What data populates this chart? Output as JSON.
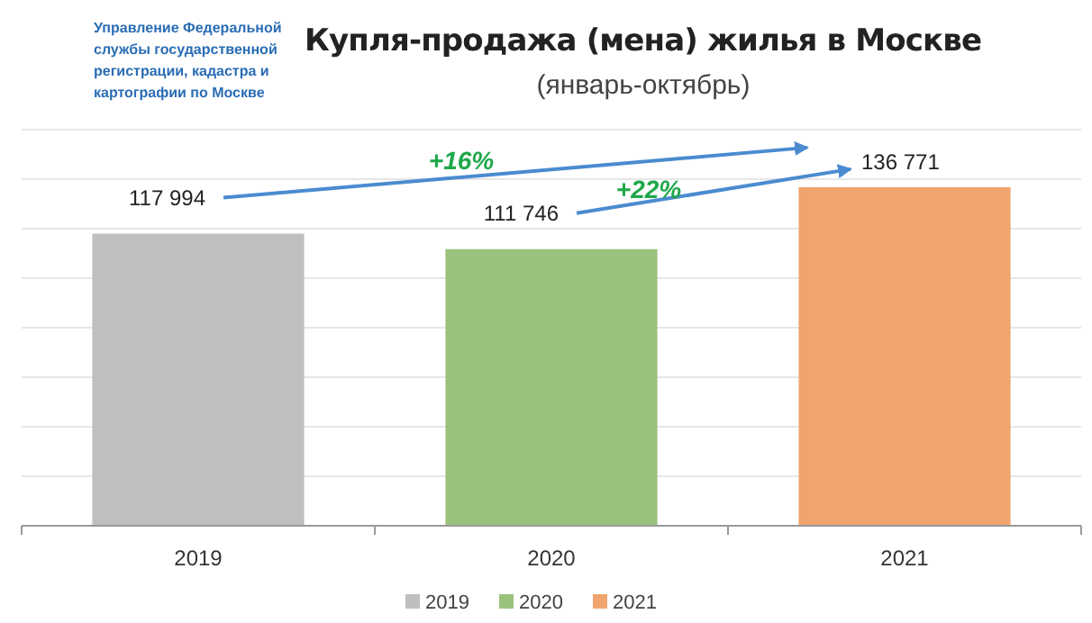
{
  "chart_data": {
    "type": "bar",
    "title": "Купля-продажа (мена) жилья в Москве",
    "subtitle": "(январь-октябрь)",
    "categories": [
      "2019",
      "2020",
      "2021"
    ],
    "stacked": true,
    "series": [
      {
        "name": "2019",
        "color": "#bfbfbf",
        "values": [
          117994,
          null,
          null
        ],
        "value_labels": [
          "117 994",
          null,
          null
        ]
      },
      {
        "name": "2020",
        "color": "#9bc27c",
        "values": [
          null,
          111746,
          null
        ],
        "value_labels": [
          null,
          "111 746",
          null
        ]
      },
      {
        "name": "2021",
        "color": "#f0a46e",
        "values": [
          null,
          null,
          136771
        ],
        "value_labels": [
          null,
          null,
          "136 771"
        ]
      }
    ],
    "ylim": [
      0,
      160000
    ],
    "yticks": [
      {
        "value": 0,
        "label": null
      },
      {
        "value": 20000,
        "label": null
      },
      {
        "value": 40000,
        "label": null
      },
      {
        "value": 60000,
        "label": null
      },
      {
        "value": 80000,
        "label": null
      },
      {
        "value": 100000,
        "label": null
      },
      {
        "value": 120000,
        "label": null
      },
      {
        "value": 140000,
        "label": null
      },
      {
        "value": 160000,
        "label": null
      }
    ],
    "grid": "y",
    "legend": "bottom",
    "tick_labels": "x",
    "annotations": [
      "Управление Федеральной службы государственной регистрации, кадастра и картографии по Москве",
      "+16%",
      "+22%"
    ]
  }
}
